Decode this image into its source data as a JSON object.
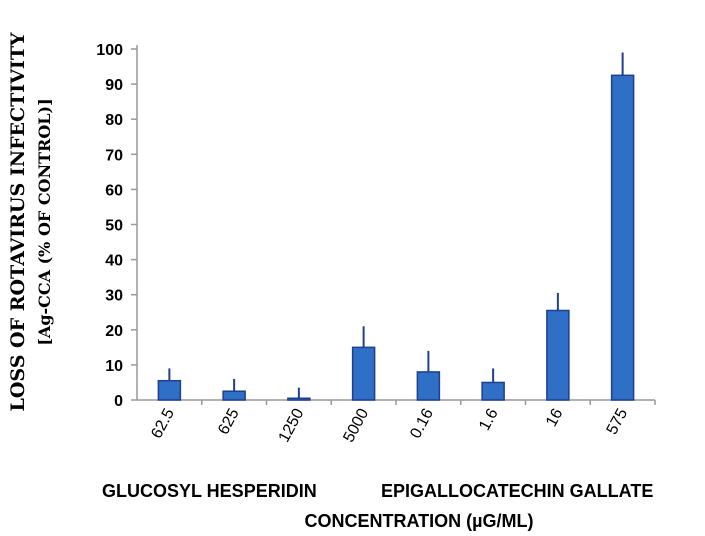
{
  "chart_data": {
    "type": "bar",
    "categories": [
      "62.5",
      "625",
      "1250",
      "5000",
      "0.16",
      "1.6",
      "16",
      "575"
    ],
    "values": [
      5.5,
      2.5,
      0.5,
      15,
      8,
      5,
      25.5,
      92.5
    ],
    "errors": [
      3.5,
      3.5,
      3,
      6,
      6,
      4,
      5,
      6.5
    ],
    "ylabel_line1": "LOSS OF ROTAVIRUS INFECTIVITY",
    "ylabel_line2": "[Ag-CCA (% OF CONTROL)]",
    "group_labels": [
      "GLUCOSYL HESPERIDIN",
      "EPIGALLOCATECHIN GALLATE"
    ],
    "xlabel": "CONCENTRATION (µG/ML)",
    "ylim": [
      0,
      100
    ],
    "yticks": [
      0,
      10,
      20,
      30,
      40,
      50,
      60,
      70,
      80,
      90,
      100
    ],
    "grid": false,
    "bar_color": "#2f6fc6",
    "bar_edge_color": "#1f3f8f"
  }
}
